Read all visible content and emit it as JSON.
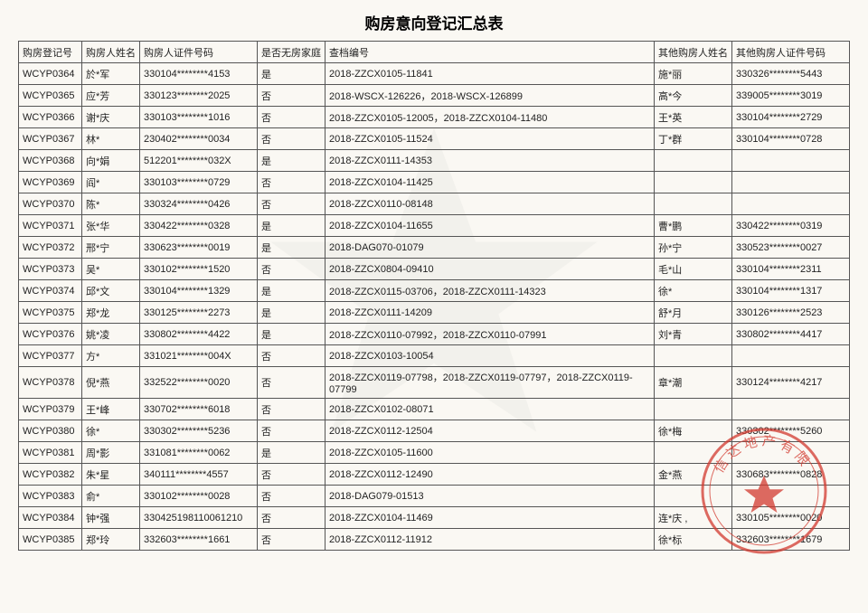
{
  "title": "购房意向登记汇总表",
  "columns": {
    "reg_no": "购房登记号",
    "name": "购房人姓名",
    "id_no": "购房人证件号码",
    "no_house": "是否无房家庭",
    "archive": "查档编号",
    "other_name": "其他购房人姓名",
    "other_id": "其他购房人证件号码"
  },
  "watermark_color": "#9aa0a6",
  "seal_color": "#d33a2f",
  "seal_text_top": "信达地产有限",
  "rows": [
    {
      "reg": "WCYP0364",
      "name": "於*军",
      "id": "330104********4153",
      "wf": "是",
      "archive": "2018-ZZCX0105-11841",
      "on": "施*丽",
      "oid": "330326********5443"
    },
    {
      "reg": "WCYP0365",
      "name": "应*芳",
      "id": "330123********2025",
      "wf": "否",
      "archive": "2018-WSCX-126226，2018-WSCX-126899",
      "on": "高*今",
      "oid": "339005********3019"
    },
    {
      "reg": "WCYP0366",
      "name": "谢*庆",
      "id": "330103********1016",
      "wf": "否",
      "archive": "2018-ZZCX0105-12005，2018-ZZCX0104-11480",
      "on": "王*英",
      "oid": "330104********2729"
    },
    {
      "reg": "WCYP0367",
      "name": "林*",
      "id": "230402********0034",
      "wf": "否",
      "archive": "2018-ZZCX0105-11524",
      "on": "丁*群",
      "oid": "330104********0728"
    },
    {
      "reg": "WCYP0368",
      "name": "向*娟",
      "id": "512201********032X",
      "wf": "是",
      "archive": "2018-ZZCX0111-14353",
      "on": "",
      "oid": ""
    },
    {
      "reg": "WCYP0369",
      "name": "阎*",
      "id": "330103********0729",
      "wf": "否",
      "archive": "2018-ZZCX0104-11425",
      "on": "",
      "oid": ""
    },
    {
      "reg": "WCYP0370",
      "name": "陈*",
      "id": "330324********0426",
      "wf": "否",
      "archive": "2018-ZZCX0110-08148",
      "on": "",
      "oid": ""
    },
    {
      "reg": "WCYP0371",
      "name": "张*华",
      "id": "330422********0328",
      "wf": "是",
      "archive": "2018-ZZCX0104-11655",
      "on": "曹*鹏",
      "oid": "330422********0319"
    },
    {
      "reg": "WCYP0372",
      "name": "邢*宁",
      "id": "330623********0019",
      "wf": "是",
      "archive": "2018-DAG070-01079",
      "on": "孙*宁",
      "oid": "330523********0027"
    },
    {
      "reg": "WCYP0373",
      "name": "吴*",
      "id": "330102********1520",
      "wf": "否",
      "archive": "2018-ZZCX0804-09410",
      "on": "毛*山",
      "oid": "330104********2311"
    },
    {
      "reg": "WCYP0374",
      "name": "邱*文",
      "id": "330104********1329",
      "wf": "是",
      "archive": "2018-ZZCX0115-03706，2018-ZZCX0111-14323",
      "on": "徐*",
      "oid": "330104********1317"
    },
    {
      "reg": "WCYP0375",
      "name": "郑*龙",
      "id": "330125********2273",
      "wf": "是",
      "archive": "2018-ZZCX0111-14209",
      "on": "舒*月",
      "oid": "330126********2523"
    },
    {
      "reg": "WCYP0376",
      "name": "姚*凌",
      "id": "330802********4422",
      "wf": "是",
      "archive": "2018-ZZCX0110-07992，2018-ZZCX0110-07991",
      "on": "刘*青",
      "oid": "330802********4417"
    },
    {
      "reg": "WCYP0377",
      "name": "方*",
      "id": "331021********004X",
      "wf": "否",
      "archive": "2018-ZZCX0103-10054",
      "on": "",
      "oid": ""
    },
    {
      "reg": "WCYP0378",
      "name": "倪*燕",
      "id": "332522********0020",
      "wf": "否",
      "archive": "2018-ZZCX0119-07798，2018-ZZCX0119-07797，2018-ZZCX0119-07799",
      "on": "章*潮",
      "oid": "330124********4217"
    },
    {
      "reg": "WCYP0379",
      "name": "王*峰",
      "id": "330702********6018",
      "wf": "否",
      "archive": "2018-ZZCX0102-08071",
      "on": "",
      "oid": ""
    },
    {
      "reg": "WCYP0380",
      "name": "徐*",
      "id": "330302********5236",
      "wf": "否",
      "archive": "2018-ZZCX0112-12504",
      "on": "徐*梅",
      "oid": "330302********5260"
    },
    {
      "reg": "WCYP0381",
      "name": "周*影",
      "id": "331081********0062",
      "wf": "是",
      "archive": "2018-ZZCX0105-11600",
      "on": "",
      "oid": ""
    },
    {
      "reg": "WCYP0382",
      "name": "朱*星",
      "id": "340111********4557",
      "wf": "否",
      "archive": "2018-ZZCX0112-12490",
      "on": "金*燕",
      "oid": "330683********0828"
    },
    {
      "reg": "WCYP0383",
      "name": "俞*",
      "id": "330102********0028",
      "wf": "否",
      "archive": "2018-DAG079-01513",
      "on": "",
      "oid": ""
    },
    {
      "reg": "WCYP0384",
      "name": "钟*强",
      "id": "330425198110061210",
      "wf": "否",
      "archive": "2018-ZZCX0104-11469",
      "on": "连*庆  ,",
      "oid": "330105********0020"
    },
    {
      "reg": "WCYP0385",
      "name": "郑*玲",
      "id": "332603********1661",
      "wf": "否",
      "archive": "2018-ZZCX0112-11912",
      "on": "徐*标",
      "oid": "332603********1679"
    }
  ]
}
